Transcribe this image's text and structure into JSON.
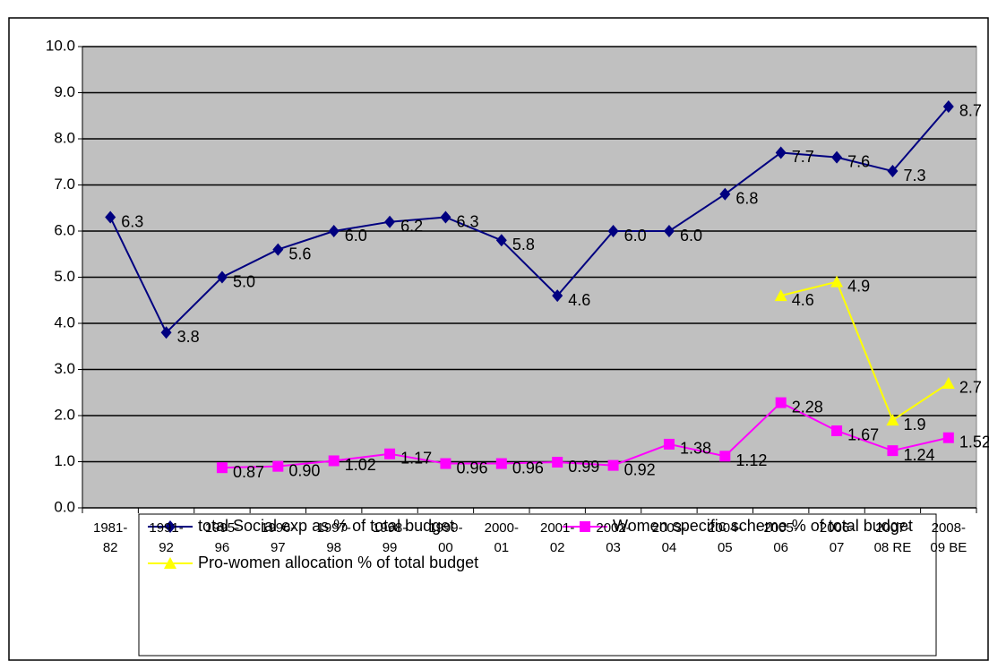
{
  "chart_data": {
    "type": "line",
    "categories": [
      "1981-82",
      "1991-92",
      "1995-96",
      "1996-97",
      "1997-98",
      "1998-99",
      "1999-00",
      "2000-01",
      "2001-02",
      "2002-03",
      "2003-04",
      "2004-05",
      "2005-06",
      "2006-07",
      "2007-08 RE",
      "2008-09 BE"
    ],
    "series": [
      {
        "name": "total Social exp as % of total budget",
        "color": "#000080",
        "marker": "diamond",
        "values": [
          6.3,
          3.8,
          5.0,
          5.6,
          6.0,
          6.2,
          6.3,
          5.8,
          4.6,
          6.0,
          6.0,
          6.8,
          7.7,
          7.6,
          7.3,
          8.7
        ],
        "value_labels": [
          "6.3",
          "3.8",
          "5.0",
          "5.6",
          "6.0",
          "6.2",
          "6.3",
          "5.8",
          "4.6",
          "6.0",
          "6.0",
          "6.8",
          "7.7",
          "7.6",
          "7.3",
          "8.7"
        ]
      },
      {
        "name": "Women specific scheme % of total budget",
        "color": "#ff00ff",
        "marker": "square",
        "values": [
          null,
          null,
          0.87,
          0.9,
          1.02,
          1.17,
          0.96,
          0.96,
          0.99,
          0.92,
          1.38,
          1.12,
          2.28,
          1.67,
          1.24,
          1.52
        ],
        "value_labels": [
          null,
          null,
          "0.87",
          "0.90",
          "1.02",
          "1.17",
          "0.96",
          "0.96",
          "0.99",
          "0.92",
          "1.38",
          "1.12",
          "2.28",
          "1.67",
          "1.24",
          "1.52"
        ]
      },
      {
        "name": "Pro-women allocation % of total budget",
        "color": "#ffff00",
        "marker": "triangle",
        "values": [
          null,
          null,
          null,
          null,
          null,
          null,
          null,
          null,
          null,
          null,
          null,
          null,
          4.6,
          4.9,
          1.9,
          2.7
        ],
        "value_labels": [
          null,
          null,
          null,
          null,
          null,
          null,
          null,
          null,
          null,
          null,
          null,
          null,
          "4.6",
          "4.9",
          "1.9",
          "2.7"
        ]
      }
    ],
    "ylim": [
      0,
      10
    ],
    "yticks": [
      {
        "value": 0,
        "label": "0.0"
      },
      {
        "value": 1,
        "label": "1.0"
      },
      {
        "value": 2,
        "label": "2.0"
      },
      {
        "value": 3,
        "label": "3.0"
      },
      {
        "value": 4,
        "label": "4.0"
      },
      {
        "value": 5,
        "label": "5.0"
      },
      {
        "value": 6,
        "label": "6.0"
      },
      {
        "value": 7,
        "label": "7.0"
      },
      {
        "value": 8,
        "label": "8.0"
      },
      {
        "value": 9,
        "label": "9.0"
      },
      {
        "value": 10,
        "label": "10.0"
      }
    ],
    "grid": true,
    "plot_background": "#c0c0c0",
    "legend": "bottom"
  }
}
